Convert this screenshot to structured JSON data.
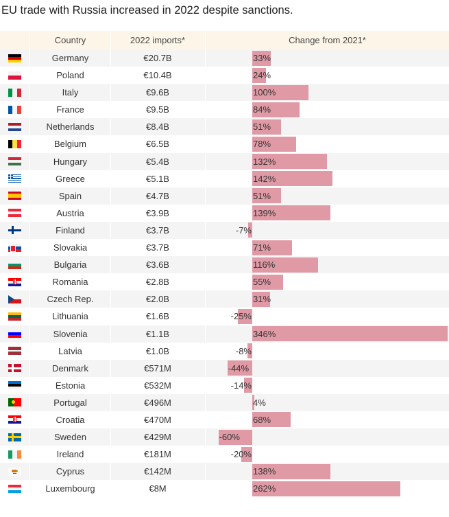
{
  "title": "EU trade with Russia increased in 2022 despite sanctions.",
  "colors": {
    "bar": "#e09aa6",
    "header_bg": "#fdf6e8",
    "row_alt": "#f4f4f4"
  },
  "chart_data": {
    "type": "bar",
    "title": "EU trade with Russia increased in 2022 despite sanctions.",
    "columns": [
      "Country",
      "2022 imports*",
      "Change from 2021*"
    ],
    "xlabel": "Change from 2021*",
    "ylabel": "",
    "xlim": [
      -60,
      346
    ],
    "rows": [
      {
        "country": "Germany",
        "imports": "€20.7B",
        "change": 33,
        "label": "33%",
        "flag": "de"
      },
      {
        "country": "Poland",
        "imports": "€10.4B",
        "change": 24,
        "label": "24%",
        "flag": "pl"
      },
      {
        "country": "Italy",
        "imports": "€9.6B",
        "change": 100,
        "label": "100%",
        "flag": "it"
      },
      {
        "country": "France",
        "imports": "€9.5B",
        "change": 84,
        "label": "84%",
        "flag": "fr"
      },
      {
        "country": "Netherlands",
        "imports": "€8.4B",
        "change": 51,
        "label": "51%",
        "flag": "nl"
      },
      {
        "country": "Belgium",
        "imports": "€6.5B",
        "change": 78,
        "label": "78%",
        "flag": "be"
      },
      {
        "country": "Hungary",
        "imports": "€5.4B",
        "change": 132,
        "label": "132%",
        "flag": "hu"
      },
      {
        "country": "Greece",
        "imports": "€5.1B",
        "change": 142,
        "label": "142%",
        "flag": "gr"
      },
      {
        "country": "Spain",
        "imports": "€4.7B",
        "change": 51,
        "label": "51%",
        "flag": "es"
      },
      {
        "country": "Austria",
        "imports": "€3.9B",
        "change": 139,
        "label": "139%",
        "flag": "at"
      },
      {
        "country": "Finland",
        "imports": "€3.7B",
        "change": -7,
        "label": "-7%",
        "flag": "fi"
      },
      {
        "country": "Slovakia",
        "imports": "€3.7B",
        "change": 71,
        "label": "71%",
        "flag": "sk"
      },
      {
        "country": "Bulgaria",
        "imports": "€3.6B",
        "change": 116,
        "label": "116%",
        "flag": "bg"
      },
      {
        "country": "Romania",
        "imports": "€2.8B",
        "change": 55,
        "label": "55%",
        "flag": "hr"
      },
      {
        "country": "Czech Rep.",
        "imports": "€2.0B",
        "change": 31,
        "label": "31%",
        "flag": "cz"
      },
      {
        "country": "Lithuania",
        "imports": "€1.6B",
        "change": -25,
        "label": "-25%",
        "flag": "lt"
      },
      {
        "country": "Slovenia",
        "imports": "€1.1B",
        "change": 346,
        "label": "346%",
        "flag": "si"
      },
      {
        "country": "Latvia",
        "imports": "€1.0B",
        "change": -8,
        "label": "-8%",
        "flag": "lv"
      },
      {
        "country": "Denmark",
        "imports": "€571M",
        "change": -44,
        "label": "-44%",
        "flag": "dk"
      },
      {
        "country": "Estonia",
        "imports": "€532M",
        "change": -14,
        "label": "-14%",
        "flag": "ee"
      },
      {
        "country": "Portugal",
        "imports": "€496M",
        "change": 4,
        "label": "4%",
        "flag": "pt"
      },
      {
        "country": "Croatia",
        "imports": "€470M",
        "change": 68,
        "label": "68%",
        "flag": "hr"
      },
      {
        "country": "Sweden",
        "imports": "€429M",
        "change": -60,
        "label": "-60%",
        "flag": "se"
      },
      {
        "country": "Ireland",
        "imports": "€181M",
        "change": -20,
        "label": "-20%",
        "flag": "ie"
      },
      {
        "country": "Cyprus",
        "imports": "€142M",
        "change": 138,
        "label": "138%",
        "flag": "cy"
      },
      {
        "country": "Luxembourg",
        "imports": "€8M",
        "change": 262,
        "label": "262%",
        "flag": "lu"
      }
    ]
  }
}
